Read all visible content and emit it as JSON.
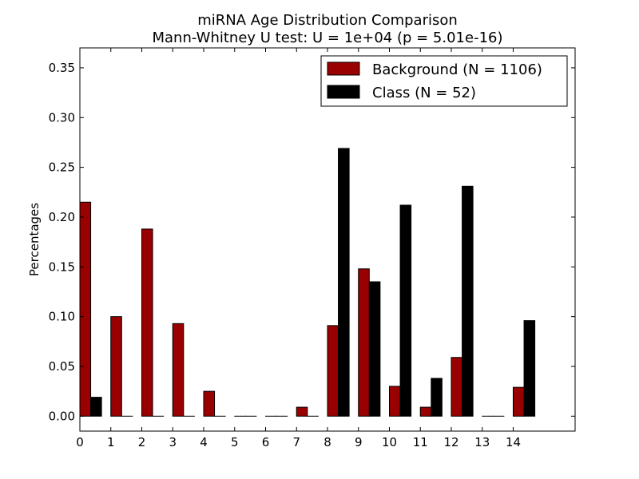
{
  "title_line1": "miRNA Age Distribution Comparison",
  "title_line2": "Mann-Whitney U test: U = 1e+04 (p = 5.01e-16)",
  "ylabel": "Percentages",
  "legend": {
    "background": "Background (N = 1106)",
    "class": "Class (N = 52)"
  },
  "chart_data": {
    "type": "bar",
    "title": "miRNA Age Distribution Comparison\nMann-Whitney U test: U = 1e+04 (p = 5.01e-16)",
    "xlabel": "",
    "ylabel": "Percentages",
    "categories": [
      "0",
      "1",
      "2",
      "3",
      "4",
      "5",
      "6",
      "7",
      "8",
      "9",
      "10",
      "11",
      "12",
      "13",
      "14"
    ],
    "series": [
      {
        "name": "Background (N = 1106)",
        "color": "#990000",
        "values": [
          0.215,
          0.1,
          0.188,
          0.093,
          0.025,
          0.0,
          0.0,
          0.009,
          0.091,
          0.148,
          0.03,
          0.009,
          0.059,
          0.0,
          0.029
        ]
      },
      {
        "name": "Class (N = 52)",
        "color": "#000000",
        "values": [
          0.019,
          0.0,
          0.0,
          0.0,
          0.0,
          0.0,
          0.0,
          0.0,
          0.269,
          0.135,
          0.212,
          0.038,
          0.231,
          0.0,
          0.096
        ]
      }
    ],
    "xlim": [
      0,
      16
    ],
    "ylim": [
      -0.015,
      0.37
    ],
    "yticks": [
      "0.00",
      "0.05",
      "0.10",
      "0.15",
      "0.20",
      "0.25",
      "0.30",
      "0.35"
    ],
    "xticks": [
      "0",
      "1",
      "2",
      "3",
      "4",
      "5",
      "6",
      "7",
      "8",
      "9",
      "10",
      "11",
      "12",
      "13",
      "14"
    ],
    "grid": false,
    "legend_position": "top-right"
  }
}
